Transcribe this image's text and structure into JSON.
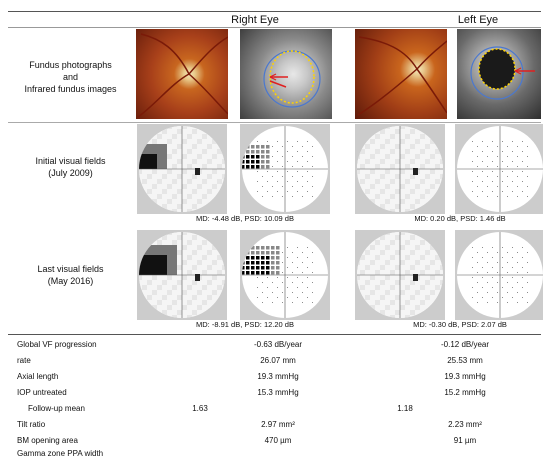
{
  "headers": {
    "right": "Right Eye",
    "left": "Left Eye"
  },
  "rows": {
    "fundus": [
      "Fundus photographs",
      "and",
      "Infrared fundus images"
    ],
    "initial": [
      "Initial visual fields",
      "(July 2009)"
    ],
    "last": [
      "Last visual fields",
      "(May 2016)"
    ]
  },
  "captions": {
    "initial_right": "MD: -4.48 dB, PSD: 10.09 dB",
    "initial_left": "MD: 0.20 dB, PSD: 1.46 dB",
    "last_right": "MD: -8.91 dB, PSD: 12.20 dB",
    "last_left": "MD: -0.30 dB, PSD: 2.07 dB"
  },
  "table": [
    {
      "label": "Global VF progression",
      "right": "-0.63 dB/year",
      "left": "-0.12 dB/year"
    },
    {
      "label": "rate",
      "right": "26.07 mm",
      "left": "25.53 mm"
    },
    {
      "label": "Axial length",
      "right": "19.3 mmHg",
      "left": "19.3 mmHg"
    },
    {
      "label": "IOP untreated",
      "right": "15.3 mmHg",
      "left": "15.2 mmHg"
    },
    {
      "label": "Follow-up mean",
      "right": "1.63",
      "left": "1.18"
    },
    {
      "label": "Tilt ratio",
      "right": "2.97 mm²",
      "left": "2.23 mm²"
    },
    {
      "label": "BM opening area",
      "right": "470 µm",
      "left": "91 µm"
    },
    {
      "label": "Gamma zone PPA width",
      "right": "",
      "left": ""
    }
  ]
}
